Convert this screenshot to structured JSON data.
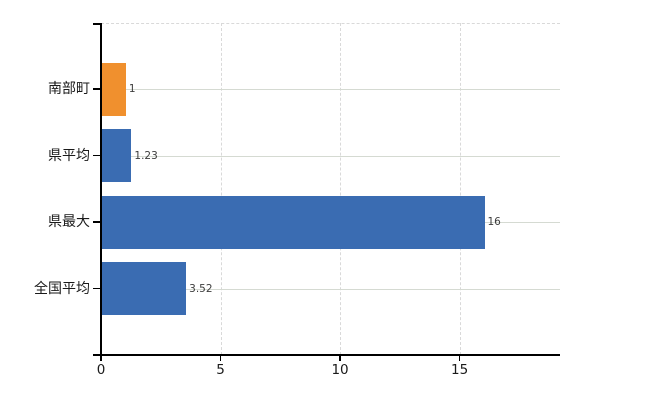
{
  "chart_data": {
    "type": "bar",
    "orientation": "horizontal",
    "title": "",
    "categories": [
      "南部町",
      "県平均",
      "県最大",
      "全国平均"
    ],
    "values": [
      1,
      1.23,
      16,
      3.52
    ],
    "value_labels": [
      "1",
      "1.23",
      "16",
      "3.52"
    ],
    "bar_colors": [
      "#f0902e",
      "#3a6cb2",
      "#3a6cb2",
      "#3a6cb2"
    ],
    "x_ticks": [
      0,
      5,
      10,
      15
    ],
    "x_tick_labels": [
      "0",
      "5",
      "10",
      "15"
    ],
    "xlim": [
      0,
      19.2
    ],
    "xlabel": "",
    "ylabel": "",
    "grid": true,
    "legend": false,
    "highlight_category": "南部町"
  },
  "colors": {
    "highlight_bar": "#f0902e",
    "default_bar": "#3a6cb2",
    "gridline_vertical": "#d9d9d9",
    "gridline_horizontal": "#d5dad2",
    "plot_top_border": "#d9d9d9",
    "axis": "#000000",
    "category_label": "#1a1a1a",
    "value_label": "#3c3c3c",
    "tick_label": "#1a1a1a",
    "background": "#ffffff"
  }
}
